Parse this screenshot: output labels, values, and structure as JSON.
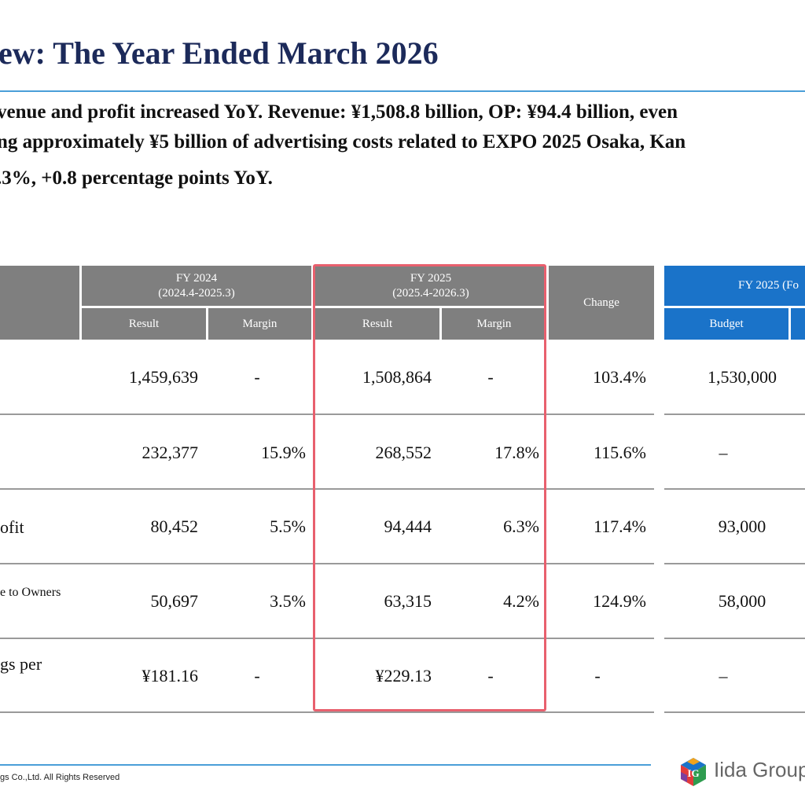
{
  "page": {
    "title": "ew: The Year Ended March 2026",
    "summary_lines": [
      "venue and profit increased YoY.  Revenue: ¥1,508.8 billion, OP: ¥94.4 billion, even",
      "ng approximately ¥5 billion of advertising costs related to EXPO 2025 Osaka, Kan",
      ".3%, +0.8 percentage points YoY."
    ]
  },
  "table": {
    "headers": {
      "fy2024_title": "FY 2024",
      "fy2024_period": "(2024.4-2025.3)",
      "fy2025_title": "FY 2025",
      "fy2025_period": "(2025.4-2026.3)",
      "change": "Change",
      "forecast_title": "FY 2025 (Fo",
      "result": "Result",
      "margin": "Margin",
      "budget": "Budget"
    },
    "rows": [
      {
        "label": "",
        "fy24_result": "1,459,639",
        "fy24_margin": "-",
        "fy25_result": "1,508,864",
        "fy25_margin": "-",
        "change": "103.4%",
        "budget": "1,530,000"
      },
      {
        "label": "",
        "fy24_result": "232,377",
        "fy24_margin": "15.9%",
        "fy25_result": "268,552",
        "fy25_margin": "17.8%",
        "change": "115.6%",
        "budget": "–"
      },
      {
        "label": "ofit",
        "fy24_result": "80,452",
        "fy24_margin": "5.5%",
        "fy25_result": "94,444",
        "fy25_margin": "6.3%",
        "change": "117.4%",
        "budget": "93,000"
      },
      {
        "label": "e to Owners",
        "fy24_result": "50,697",
        "fy24_margin": "3.5%",
        "fy25_result": "63,315",
        "fy25_margin": "4.2%",
        "change": "124.9%",
        "budget": "58,000"
      },
      {
        "label": "gs per",
        "fy24_result": "¥181.16",
        "fy24_margin": "-",
        "fy25_result": "¥229.13",
        "fy25_margin": "-",
        "change": "-",
        "budget": "–"
      }
    ]
  },
  "footer": {
    "copyright": "gs Co.,Ltd. All Rights Reserved",
    "logo_text": "Iida Group",
    "logo_mark": "IG",
    "brand_colors": [
      "#e23b3b",
      "#f2a31b",
      "#2e9c4f",
      "#1a73c9",
      "#7b3fa0"
    ]
  }
}
